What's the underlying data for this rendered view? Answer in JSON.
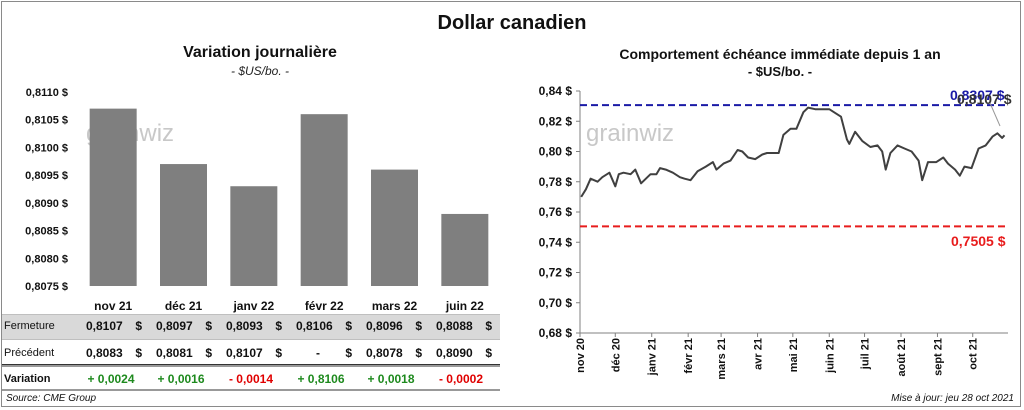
{
  "main_title": "Dollar canadien",
  "watermark": "grainwiz",
  "left_chart": {
    "title": "Variation  journalière",
    "subtitle": "- $US/bo. -",
    "unit_suffix": " $"
  },
  "right_chart": {
    "title": "Comportement échéance immédiate depuis 1 an",
    "subtitle": "- $US/bo. -",
    "high_label": "0,8307 $",
    "last_label": "0,8107 $",
    "low_label": "0,7505 $"
  },
  "table": {
    "row_labels": [
      "Fermeture",
      "Précédent",
      "Variation"
    ],
    "currency": "$",
    "fermeture": [
      "0,8107",
      "0,8097",
      "0,8093",
      "0,8106",
      "0,8096",
      "0,8088"
    ],
    "precedent": [
      "0,8083",
      "0,8081",
      "0,8107",
      "-",
      "0,8078",
      "0,8090"
    ],
    "variation": [
      "+ 0,0024",
      "+ 0,0016",
      "- 0,0014",
      "+ 0,8106",
      "+ 0,0018",
      "- 0,0002"
    ]
  },
  "footer": {
    "source": "Source: CME Group",
    "updated": "Mise à jour: jeu 28 oct 2021"
  },
  "colors": {
    "bar": "#7f7f7f",
    "line": "#404040",
    "high": "#1a1aa6",
    "low": "#e81c1c",
    "positive": "#1e8a1e",
    "negative": "#e00000"
  },
  "chart_data": [
    {
      "type": "bar",
      "title": "Variation  journalière",
      "categories": [
        "nov 21",
        "déc 21",
        "janv 22",
        "févr 22",
        "mars 22",
        "juin 22"
      ],
      "values": [
        0.8107,
        0.8097,
        0.8093,
        0.8106,
        0.8096,
        0.8088
      ],
      "ylim": [
        0.8075,
        0.811
      ],
      "yticks": [
        0.8075,
        0.808,
        0.8085,
        0.809,
        0.8095,
        0.81,
        0.8105,
        0.811
      ],
      "ytick_labels": [
        "0,8075 $",
        "0,8080 $",
        "0,8085 $",
        "0,8090 $",
        "0,8095 $",
        "0,8100 $",
        "0,8105 $",
        "0,8110 $"
      ],
      "grid": false
    },
    {
      "type": "line",
      "title": "Comportement échéance immédiate depuis 1 an",
      "ylim": [
        0.68,
        0.84
      ],
      "yticks": [
        0.68,
        0.7,
        0.72,
        0.74,
        0.76,
        0.78,
        0.8,
        0.82,
        0.84
      ],
      "ytick_labels": [
        "0,68 $",
        "0,70 $",
        "0,72 $",
        "0,74 $",
        "0,76 $",
        "0,78 $",
        "0,80 $",
        "0,82 $",
        "0,84 $"
      ],
      "xlim": [
        "2020-11-01",
        "2021-10-31"
      ],
      "xticks": [
        "2020-11-01",
        "2020-12-01",
        "2021-01-01",
        "2021-02-01",
        "2021-03-01",
        "2021-04-01",
        "2021-05-01",
        "2021-06-01",
        "2021-07-01",
        "2021-08-01",
        "2021-09-01",
        "2021-10-01"
      ],
      "xtick_labels": [
        "nov 20",
        "déc 20",
        "janv 21",
        "févr 21",
        "mars 21",
        "avr 21",
        "mai 21",
        "juin 21",
        "juil 21",
        "août 21",
        "sept 21",
        "oct 21"
      ],
      "reference_lines": [
        {
          "value": 0.8307,
          "color": "#1a1aa6",
          "style": "dashed"
        },
        {
          "value": 0.7505,
          "color": "#e81c1c",
          "style": "dashed"
        }
      ],
      "series": [
        {
          "x": [
            "2020-11-02",
            "2020-11-06",
            "2020-11-10",
            "2020-11-16",
            "2020-11-20",
            "2020-11-26",
            "2020-12-01",
            "2020-12-04",
            "2020-12-08",
            "2020-12-14",
            "2020-12-18",
            "2020-12-23",
            "2020-12-31",
            "2021-01-05",
            "2021-01-08",
            "2021-01-13",
            "2021-01-19",
            "2021-01-25",
            "2021-01-29",
            "2021-02-03",
            "2021-02-09",
            "2021-02-16",
            "2021-02-22",
            "2021-02-25",
            "2021-03-03",
            "2021-03-09",
            "2021-03-15",
            "2021-03-19",
            "2021-03-24",
            "2021-03-30",
            "2021-04-05",
            "2021-04-09",
            "2021-04-14",
            "2021-04-19",
            "2021-04-23",
            "2021-04-29",
            "2021-05-04",
            "2021-05-10",
            "2021-05-14",
            "2021-05-20",
            "2021-05-26",
            "2021-06-01",
            "2021-06-07",
            "2021-06-11",
            "2021-06-16",
            "2021-06-18",
            "2021-06-23",
            "2021-06-29",
            "2021-07-06",
            "2021-07-12",
            "2021-07-16",
            "2021-07-19",
            "2021-07-23",
            "2021-07-29",
            "2021-08-04",
            "2021-08-10",
            "2021-08-16",
            "2021-08-19",
            "2021-08-24",
            "2021-08-31",
            "2021-09-06",
            "2021-09-10",
            "2021-09-16",
            "2021-09-20",
            "2021-09-24",
            "2021-09-30",
            "2021-10-06",
            "2021-10-12",
            "2021-10-18",
            "2021-10-22",
            "2021-10-26",
            "2021-10-28"
          ],
          "values": [
            0.77,
            0.775,
            0.782,
            0.78,
            0.783,
            0.786,
            0.777,
            0.785,
            0.786,
            0.785,
            0.788,
            0.779,
            0.785,
            0.785,
            0.789,
            0.788,
            0.786,
            0.783,
            0.782,
            0.781,
            0.787,
            0.79,
            0.793,
            0.788,
            0.792,
            0.794,
            0.801,
            0.8,
            0.796,
            0.795,
            0.798,
            0.799,
            0.799,
            0.799,
            0.811,
            0.815,
            0.815,
            0.826,
            0.829,
            0.828,
            0.828,
            0.828,
            0.825,
            0.823,
            0.808,
            0.805,
            0.813,
            0.807,
            0.803,
            0.804,
            0.8,
            0.788,
            0.799,
            0.804,
            0.802,
            0.8,
            0.794,
            0.781,
            0.793,
            0.793,
            0.796,
            0.792,
            0.788,
            0.784,
            0.79,
            0.789,
            0.802,
            0.804,
            0.81,
            0.812,
            0.809,
            0.8107
          ]
        }
      ]
    }
  ]
}
